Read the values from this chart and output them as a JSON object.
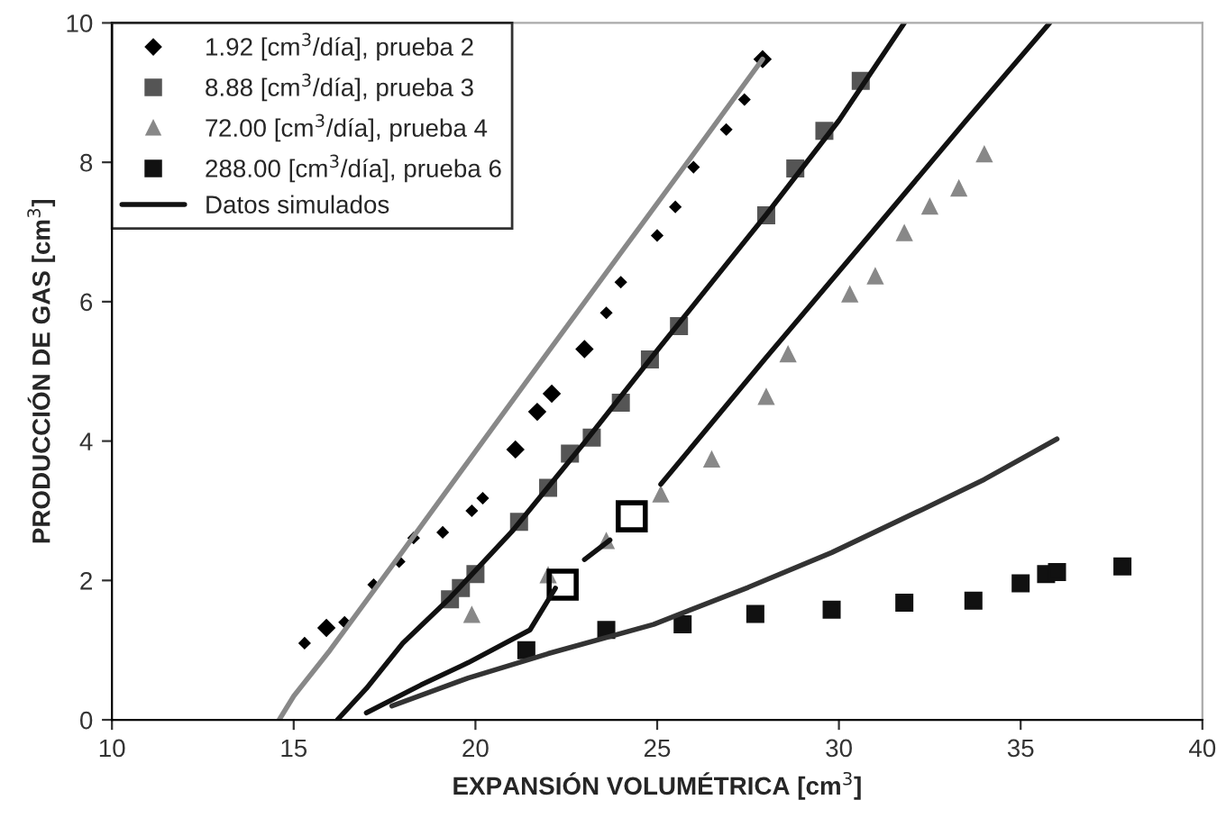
{
  "chart_data": {
    "type": "scatter",
    "xlabel": "EXPANSIÓN VOLUMÉTRICA [cm$^{3}$]",
    "ylabel": "PRODUCCIÓN DE GAS [cm$^{3}$]",
    "xlim": [
      10,
      40
    ],
    "xticks": [
      10,
      15,
      20,
      25,
      30,
      35,
      40
    ],
    "ylim": [
      0,
      10
    ],
    "yticks": [
      0,
      2,
      4,
      6,
      8,
      10
    ],
    "grid": false,
    "legend": "top left",
    "series": [
      {
        "name": "1.92 [cm$^{3}$/día], prueba 2",
        "marker": "diamond",
        "color": "#000000",
        "x": [
          15.9,
          21.1,
          21.7,
          22.1,
          23.0,
          27.9
        ],
        "values": [
          1.32,
          3.88,
          4.42,
          4.68,
          5.32,
          9.48
        ]
      },
      {
        "marker": "diamond",
        "color": "#000000",
        "x": [
          15.3,
          16.4,
          17.2,
          17.9,
          18.3,
          19.1,
          19.9,
          20.2,
          23.6,
          24.0,
          25.0,
          25.5,
          26.0,
          26.9,
          27.4
        ],
        "values": [
          1.1,
          1.4,
          1.94,
          2.27,
          2.61,
          2.69,
          3.0,
          3.18,
          5.84,
          6.28,
          6.95,
          7.36,
          7.93,
          8.47,
          8.9
        ]
      },
      {
        "name": "8.88 [cm$^{3}$/día], prueba 3",
        "marker": "square",
        "color": "#555555",
        "x": [
          19.3,
          19.6,
          20.0,
          21.2,
          22.0,
          22.6,
          23.2,
          24.0,
          24.8,
          25.6,
          28.0,
          28.8,
          29.6,
          30.6
        ],
        "values": [
          1.73,
          1.89,
          2.09,
          2.84,
          3.33,
          3.82,
          4.05,
          4.55,
          5.17,
          5.65,
          7.24,
          7.91,
          8.45,
          9.17
        ]
      },
      {
        "name": "72.00 [cm$^{3}$/día], prueba 4",
        "marker": "triangle",
        "color": "#888888",
        "x": [
          19.9,
          22.0,
          23.6,
          25.1,
          26.5,
          28.0,
          28.6,
          30.3,
          31.0,
          31.8,
          32.5,
          33.3,
          34.0
        ],
        "values": [
          1.5,
          2.07,
          2.56,
          3.23,
          3.73,
          4.63,
          5.24,
          6.1,
          6.36,
          6.98,
          7.36,
          7.62,
          8.11
        ]
      },
      {
        "name": "288.00 [cm$^{3}$/día], prueba 6",
        "marker": "square",
        "color": "#111111",
        "x": [
          21.4,
          23.6,
          25.7,
          27.7,
          29.8,
          31.8,
          33.7,
          35.0,
          35.7,
          36.0,
          37.8
        ],
        "values": [
          1.0,
          1.29,
          1.37,
          1.52,
          1.58,
          1.68,
          1.71,
          1.96,
          2.09,
          2.12,
          2.2
        ]
      },
      {
        "marker": "square",
        "color": "#000000",
        "x": [
          22.4,
          24.3
        ],
        "values": [
          1.94,
          2.92
        ]
      },
      {
        "type": "line",
        "color": "#888888",
        "x": [
          14.6,
          15.0,
          16.0,
          18.0,
          20.0,
          22.0,
          24.0,
          26.0,
          27.9
        ],
        "values": [
          0,
          0.34,
          1.0,
          2.42,
          3.85,
          5.28,
          6.7,
          8.12,
          9.48
        ]
      },
      {
        "name": "Datos simulados",
        "type": "line",
        "color": "#111111",
        "x": [
          16.2,
          17.0,
          18.0,
          19.3,
          21.0,
          23.0,
          25.0,
          28.0,
          30.0,
          31.8
        ],
        "values": [
          0,
          0.45,
          1.1,
          1.75,
          2.7,
          3.98,
          5.3,
          7.25,
          8.6,
          10
        ]
      },
      {
        "type": "line",
        "color": "#111111",
        "x": [
          17.0,
          18.5,
          19.8,
          21.5,
          22.2,
          22.6,
          23.0,
          23.7,
          24.4,
          25.1,
          28.0,
          31.0,
          33.5,
          35.8
        ],
        "values": [
          0.1,
          0.5,
          0.82,
          1.29,
          1.89,
          null,
          2.3,
          2.58,
          null,
          3.38,
          5.2,
          7.05,
          8.6,
          10
        ]
      },
      {
        "type": "line",
        "color": "#333333",
        "x": [
          17.7,
          19.8,
          22.0,
          24.9,
          27.5,
          29.8,
          32.3,
          34.0,
          36.0
        ],
        "values": [
          0.2,
          0.6,
          0.95,
          1.37,
          1.9,
          2.4,
          3.02,
          3.45,
          4.03
        ]
      }
    ]
  }
}
